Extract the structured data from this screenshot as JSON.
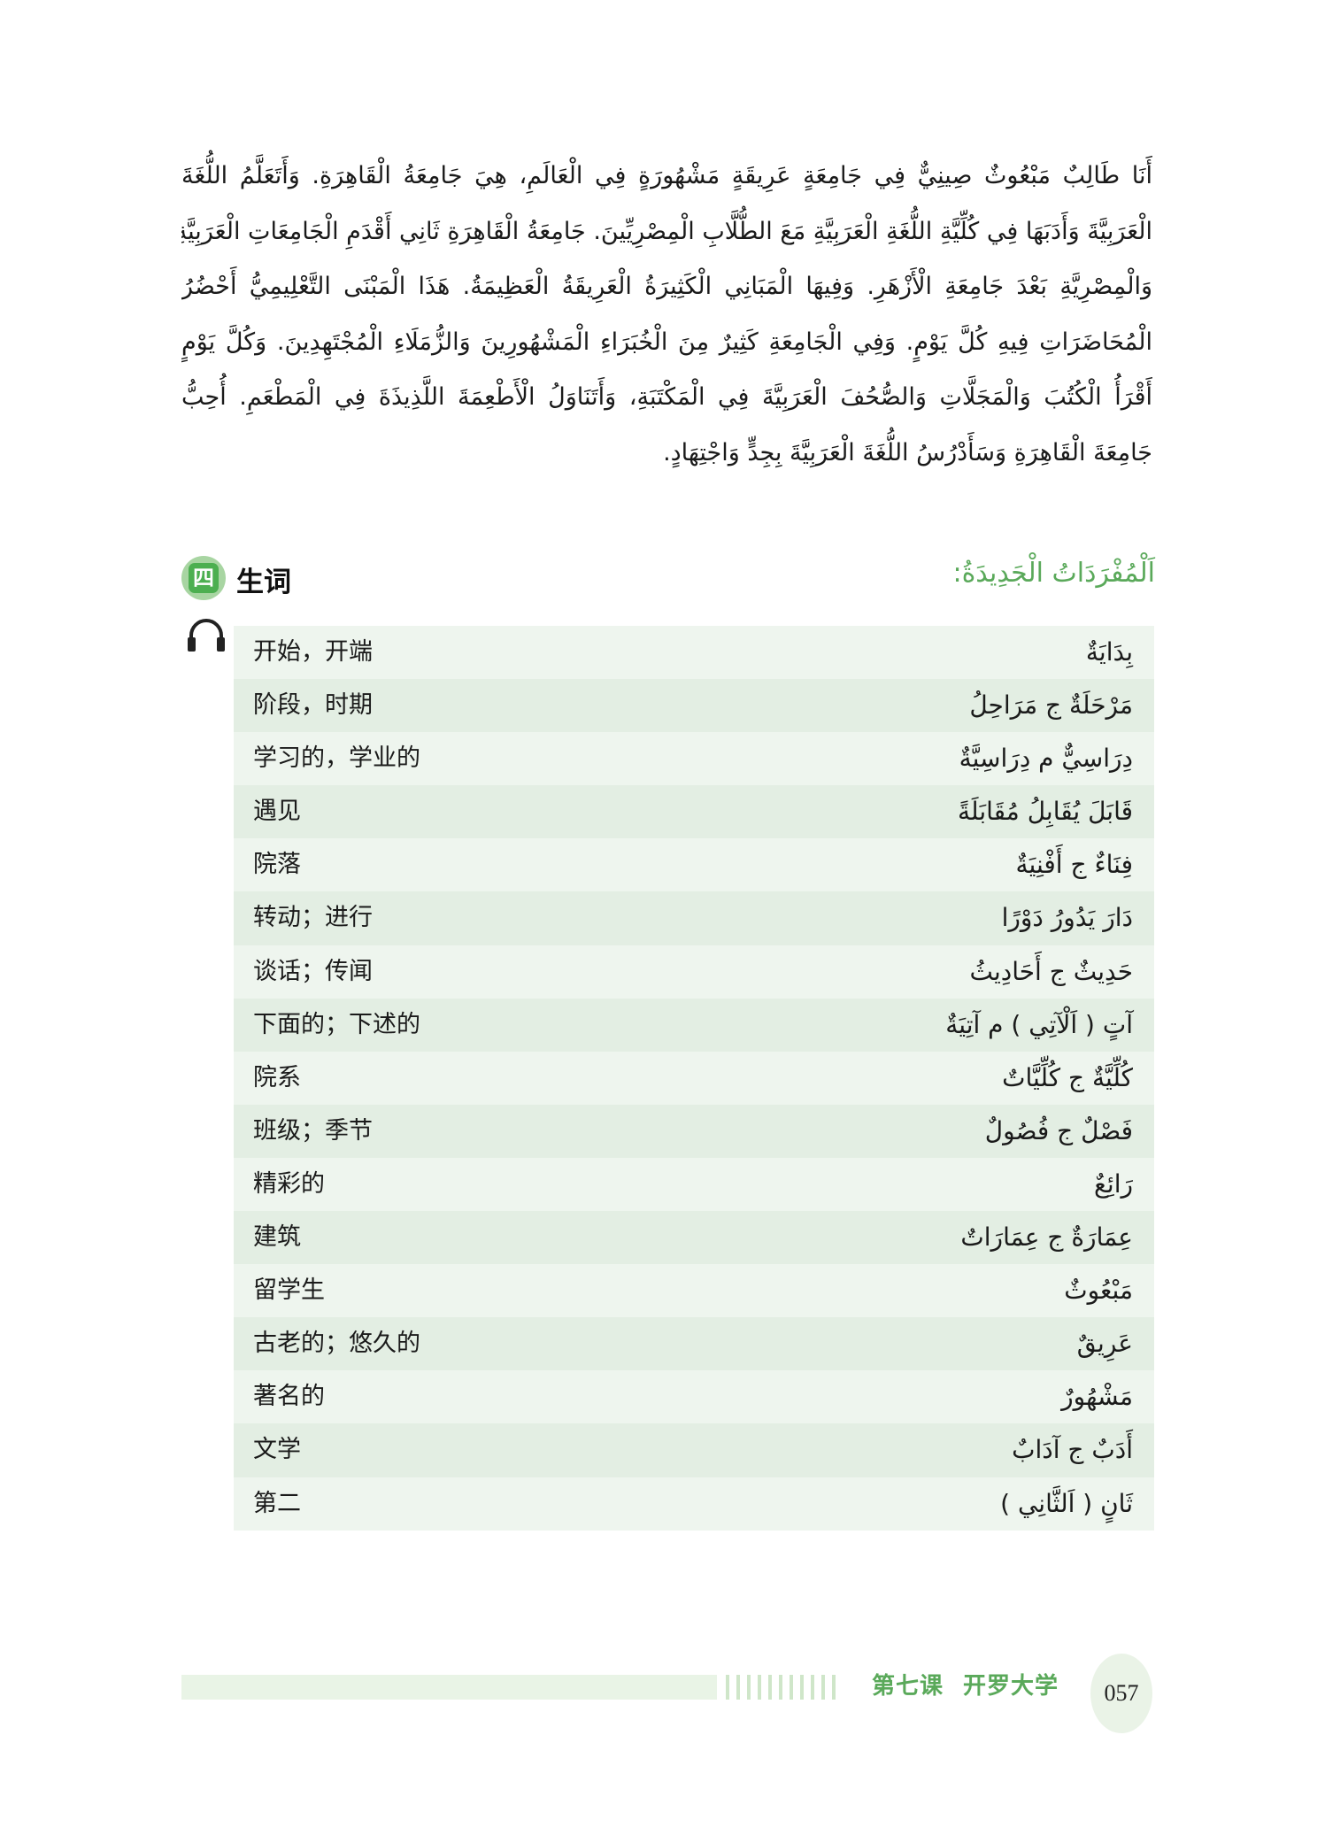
{
  "paragraph": {
    "lines": [
      "أَنَا طَالِبٌ مَبْعُوثٌ صِينِيٌّ فِي جَامِعَةٍ عَرِيقَةٍ مَشْهُورَةٍ فِي الْعَالَمِ، هِيَ جَامِعَةُ الْقَاهِرَةِ. وَأَتَعَلَّمُ اللُّغَةَ",
      "الْعَرَبِيَّةَ وَأَدَبَهَا فِي كُلِّيَّةِ اللُّغَةِ الْعَرَبِيَّةِ مَعَ الطُّلَّابِ الْمِصْرِيِّينَ. جَامِعَةُ الْقَاهِرَةِ ثَانِي أَقْدَمِ الْجَامِعَاتِ الْعَرَبِيَّةِ",
      "وَالْمِصْرِيَّةِ بَعْدَ جَامِعَةِ الْأَزْهَرِ. وَفِيهَا الْمَبَانِي الْكَثِيرَةُ الْعَرِيقَةُ الْعَظِيمَةُ. هَذَا الْمَبْنَى التَّعْلِيمِيُّ أَحْضُرُ",
      "الْمُحَاضَرَاتِ فِيهِ كُلَّ يَوْمٍ. وَفِي الْجَامِعَةِ كَثِيرٌ مِنَ الْخُبَرَاءِ الْمَشْهُورِينَ وَالزُّمَلَاءِ الْمُجْتَهِدِينَ. وَكُلَّ يَوْمٍ",
      "أَقْرَأُ الْكُتُبَ وَالْمَجَلَّاتِ وَالصُّحُفَ الْعَرَبِيَّةَ فِي الْمَكْتَبَةِ، وَأَتَنَاوَلُ الْأَطْعِمَةَ اللَّذِيذَةَ فِي الْمَطْعَمِ. أُحِبُّ",
      "جَامِعَةَ الْقَاهِرَةِ وَسَأَدْرُسُ اللُّغَةَ الْعَرَبِيَّةَ بِجِدٍّ وَاجْتِهَادٍ."
    ]
  },
  "section": {
    "number": "四",
    "title_zh": "生词",
    "title_ar": "اَلْمُفْرَدَاتُ الْجَدِيدَةُ:",
    "accent_color": "#5aa95a",
    "audio_icon": "headphones-icon"
  },
  "vocabulary": [
    {
      "zh": "开始，开端",
      "ar": "بِدَايَةٌ"
    },
    {
      "zh": "阶段，时期",
      "ar": "مَرْحَلَةٌ ج مَرَاحِلُ"
    },
    {
      "zh": "学习的，学业的",
      "ar": "دِرَاسِيٌّ م دِرَاسِيَّةٌ"
    },
    {
      "zh": "遇见",
      "ar": "قَابَلَ يُقَابِلُ مُقَابَلَةً"
    },
    {
      "zh": "院落",
      "ar": "فِنَاءٌ ج أَفْنِيَةٌ"
    },
    {
      "zh": "转动；进行",
      "ar": "دَارَ  يَدُورُ دَوْرًا"
    },
    {
      "zh": "谈话；传闻",
      "ar": "حَدِيثٌ ج أَحَادِيثُ"
    },
    {
      "zh": "下面的；下述的",
      "ar": "آتٍ ( اَلْآتِي ) م آتِيَةٌ"
    },
    {
      "zh": "院系",
      "ar": "كُلِّيَّةٌ ج كُلِّيَّاتٌ"
    },
    {
      "zh": "班级；季节",
      "ar": "فَصْلٌ ج فُصُولٌ"
    },
    {
      "zh": "精彩的",
      "ar": "رَائِعٌ"
    },
    {
      "zh": "建筑",
      "ar": "عِمَارَةٌ ج عِمَارَاتٌ"
    },
    {
      "zh": "留学生",
      "ar": "مَبْعُوثٌ"
    },
    {
      "zh": "古老的；悠久的",
      "ar": "عَرِيقٌ"
    },
    {
      "zh": "著名的",
      "ar": "مَشْهُورٌ"
    },
    {
      "zh": "文学",
      "ar": "أَدَبٌ ج آدَابٌ"
    },
    {
      "zh": "第二",
      "ar": "ثَانٍ ( اَلثَّانِي )"
    }
  ],
  "footer": {
    "lesson": "第七课",
    "lesson_title": "开罗大学",
    "page_number": "057"
  }
}
